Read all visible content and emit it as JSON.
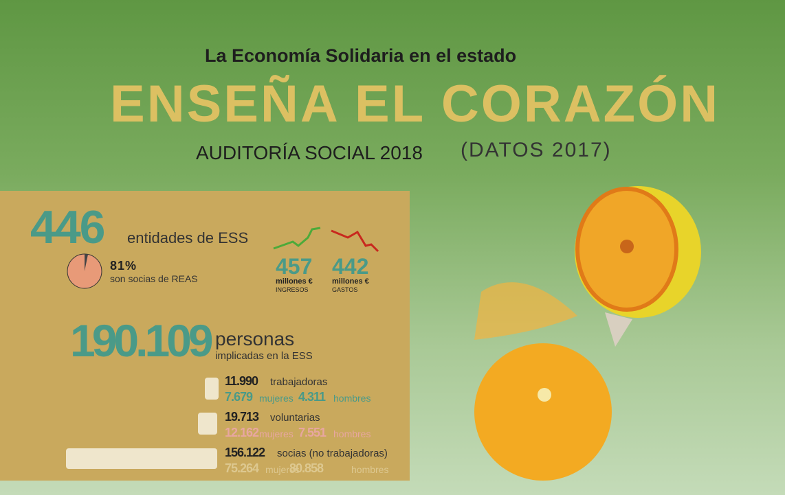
{
  "header": {
    "kicker": "La Economía Solidaria en el estado",
    "title": "ENSEÑA EL CORAZÓN",
    "subtitle": "AUDITORÍA SOCIAL 2018",
    "note": "(DATOS 2017)"
  },
  "entities": {
    "number": "446",
    "label": "entidades de ESS",
    "share": "81%",
    "share_label": "son socias de REAS"
  },
  "finance": [
    {
      "number": "457",
      "unit": "millones €",
      "label": "INGRESOS"
    },
    {
      "number": "442",
      "unit": "millones €",
      "label": "GASTOS"
    }
  ],
  "people": {
    "number": "190.109",
    "label": "personas",
    "sublabel": "implicadas en la ESS"
  },
  "groups": [
    {
      "number": "11.990",
      "label": "trabajadoras",
      "women": "7.679",
      "women_label": "mujeres",
      "men": "4.311",
      "men_label": "hombres"
    },
    {
      "number": "19.713",
      "label": "voluntarias",
      "women": "12.162",
      "women_label": "mujeres",
      "men": "7.551",
      "men_label": "hombres"
    },
    {
      "number": "156.122",
      "label": "socias (no trabajadoras)",
      "women": "75.264",
      "women_label": "mujeres",
      "men": "80.858",
      "men_label": "hombres"
    }
  ]
}
